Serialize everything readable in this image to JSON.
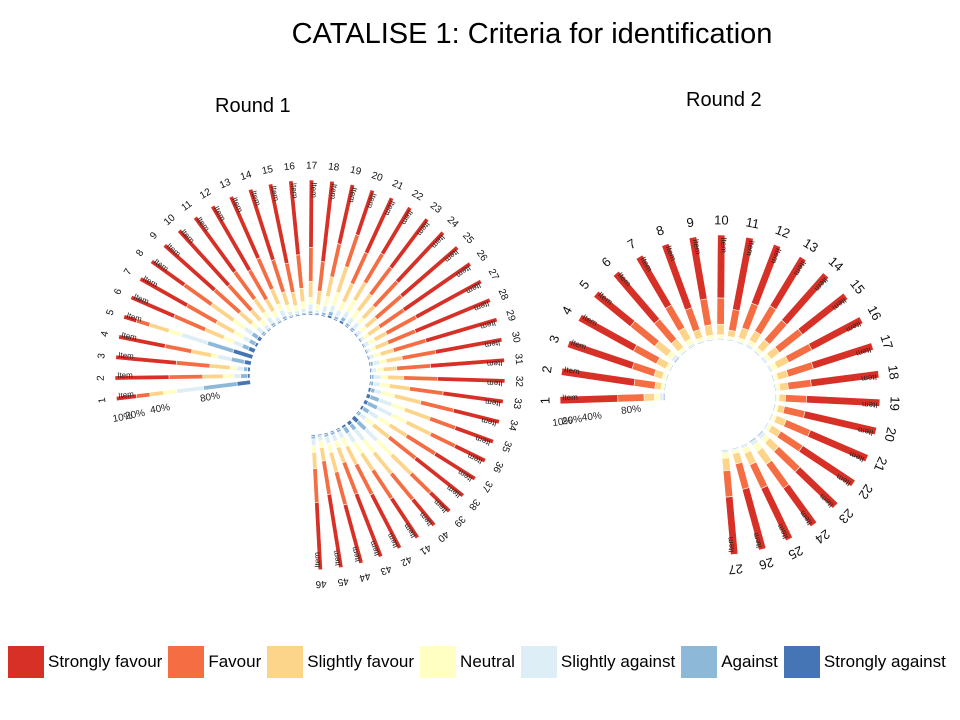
{
  "slide": {
    "title": "CATALISE 1: Criteria for identification"
  },
  "legend": [
    {
      "label": "Strongly favour",
      "color": "#d73027"
    },
    {
      "label": "Favour",
      "color": "#f46d43"
    },
    {
      "label": "Slightly favour",
      "color": "#fdd58a"
    },
    {
      "label": "Neutral",
      "color": "#ffffc4"
    },
    {
      "label": "Slightly against",
      "color": "#ddeef6"
    },
    {
      "label": "Against",
      "color": "#8db8d8"
    },
    {
      "label": "Strongly against",
      "color": "#4575b4"
    }
  ],
  "chart_data": [
    {
      "type": "circular-stacked-bar",
      "title": "Round 1",
      "item_label": "Item",
      "scale_labels": [
        "10%",
        "20%",
        "40%",
        "80%"
      ],
      "categories": [
        "1",
        "2",
        "3",
        "4",
        "5",
        "6",
        "7",
        "8",
        "9",
        "10",
        "11",
        "12",
        "13",
        "14",
        "15",
        "16",
        "17",
        "18",
        "19",
        "20",
        "21",
        "22",
        "23",
        "24",
        "25",
        "26",
        "27",
        "28",
        "29",
        "30",
        "31",
        "32",
        "33",
        "34",
        "35",
        "36",
        "37",
        "38",
        "39",
        "40",
        "41",
        "42",
        "43",
        "44",
        "45",
        "46"
      ],
      "series_order": [
        "Strongly favour",
        "Favour",
        "Slightly favour",
        "Neutral",
        "Slightly against",
        "Against",
        "Strongly against"
      ],
      "values": [
        [
          15,
          10,
          10,
          10,
          20,
          25,
          10
        ],
        [
          40,
          25,
          15,
          8,
          5,
          5,
          2
        ],
        [
          45,
          25,
          15,
          5,
          5,
          3,
          2
        ],
        [
          35,
          20,
          15,
          5,
          10,
          10,
          5
        ],
        [
          10,
          10,
          15,
          10,
          20,
          20,
          15
        ],
        [
          35,
          25,
          15,
          8,
          7,
          5,
          5
        ],
        [
          40,
          25,
          15,
          8,
          5,
          5,
          2
        ],
        [
          30,
          25,
          20,
          10,
          7,
          5,
          3
        ],
        [
          50,
          25,
          12,
          5,
          5,
          2,
          1
        ],
        [
          55,
          25,
          10,
          5,
          3,
          1,
          1
        ],
        [
          50,
          25,
          12,
          5,
          5,
          2,
          1
        ],
        [
          55,
          25,
          10,
          5,
          3,
          1,
          1
        ],
        [
          50,
          25,
          12,
          5,
          5,
          2,
          1
        ],
        [
          55,
          25,
          10,
          5,
          3,
          1,
          1
        ],
        [
          60,
          22,
          10,
          4,
          2,
          1,
          1
        ],
        [
          55,
          25,
          10,
          5,
          3,
          1,
          1
        ],
        [
          50,
          25,
          12,
          5,
          5,
          2,
          1
        ],
        [
          60,
          22,
          10,
          4,
          2,
          1,
          1
        ],
        [
          45,
          25,
          15,
          7,
          5,
          2,
          1
        ],
        [
          35,
          25,
          20,
          10,
          5,
          3,
          2
        ],
        [
          45,
          25,
          15,
          7,
          5,
          2,
          1
        ],
        [
          40,
          25,
          15,
          10,
          5,
          3,
          2
        ],
        [
          45,
          25,
          15,
          7,
          5,
          2,
          1
        ],
        [
          50,
          25,
          12,
          5,
          5,
          2,
          1
        ],
        [
          55,
          25,
          10,
          5,
          3,
          1,
          1
        ],
        [
          60,
          22,
          10,
          4,
          2,
          1,
          1
        ],
        [
          55,
          25,
          10,
          5,
          3,
          1,
          1
        ],
        [
          60,
          22,
          10,
          4,
          2,
          1,
          1
        ],
        [
          55,
          25,
          10,
          5,
          3,
          1,
          1
        ],
        [
          50,
          25,
          12,
          5,
          5,
          2,
          1
        ],
        [
          55,
          25,
          10,
          5,
          3,
          1,
          1
        ],
        [
          50,
          25,
          12,
          5,
          5,
          2,
          1
        ],
        [
          45,
          25,
          15,
          7,
          5,
          2,
          1
        ],
        [
          35,
          25,
          20,
          10,
          5,
          3,
          2
        ],
        [
          30,
          20,
          20,
          10,
          10,
          7,
          3
        ],
        [
          25,
          20,
          20,
          12,
          12,
          8,
          3
        ],
        [
          35,
          25,
          15,
          10,
          8,
          5,
          2
        ],
        [
          45,
          25,
          15,
          7,
          5,
          2,
          1
        ],
        [
          20,
          20,
          20,
          15,
          12,
          8,
          5
        ],
        [
          25,
          25,
          20,
          12,
          10,
          5,
          3
        ],
        [
          35,
          25,
          15,
          10,
          8,
          5,
          2
        ],
        [
          45,
          25,
          15,
          7,
          5,
          2,
          1
        ],
        [
          50,
          25,
          12,
          5,
          5,
          2,
          1
        ],
        [
          45,
          25,
          15,
          7,
          5,
          2,
          1
        ],
        [
          55,
          25,
          10,
          5,
          3,
          1,
          1
        ],
        [
          50,
          25,
          12,
          5,
          5,
          2,
          1
        ]
      ]
    },
    {
      "type": "circular-stacked-bar",
      "title": "Round 2",
      "item_label": "Item",
      "scale_labels": [
        "10%",
        "20%",
        "40%",
        "80%"
      ],
      "categories": [
        "1",
        "2",
        "3",
        "4",
        "5",
        "6",
        "7",
        "8",
        "9",
        "10",
        "11",
        "12",
        "13",
        "14",
        "15",
        "16",
        "17",
        "18",
        "19",
        "20",
        "21",
        "22",
        "23",
        "24",
        "25",
        "26",
        "27"
      ],
      "series_order": [
        "Strongly favour",
        "Favour",
        "Slightly favour",
        "Neutral",
        "Slightly against",
        "Against",
        "Strongly against"
      ],
      "values": [
        [
          55,
          25,
          10,
          5,
          3,
          1,
          1
        ],
        [
          70,
          20,
          6,
          2,
          1,
          1,
          0
        ],
        [
          65,
          22,
          8,
          3,
          1,
          1,
          0
        ],
        [
          60,
          25,
          10,
          3,
          1,
          1,
          0
        ],
        [
          45,
          30,
          15,
          5,
          3,
          1,
          1
        ],
        [
          60,
          25,
          10,
          3,
          1,
          1,
          0
        ],
        [
          55,
          25,
          12,
          5,
          2,
          1,
          0
        ],
        [
          65,
          22,
          8,
          3,
          1,
          1,
          0
        ],
        [
          60,
          25,
          10,
          3,
          1,
          1,
          0
        ],
        [
          60,
          25,
          10,
          3,
          1,
          1,
          0
        ],
        [
          70,
          20,
          6,
          2,
          1,
          1,
          0
        ],
        [
          60,
          25,
          10,
          3,
          1,
          1,
          0
        ],
        [
          55,
          28,
          10,
          4,
          2,
          1,
          0
        ],
        [
          60,
          25,
          10,
          3,
          1,
          1,
          0
        ],
        [
          55,
          28,
          10,
          4,
          2,
          1,
          0
        ],
        [
          55,
          25,
          12,
          5,
          2,
          1,
          0
        ],
        [
          60,
          25,
          10,
          3,
          1,
          1,
          0
        ],
        [
          65,
          22,
          8,
          3,
          1,
          1,
          0
        ],
        [
          70,
          20,
          6,
          2,
          1,
          1,
          0
        ],
        [
          70,
          20,
          6,
          2,
          1,
          1,
          0
        ],
        [
          60,
          25,
          10,
          3,
          1,
          1,
          0
        ],
        [
          60,
          25,
          10,
          3,
          1,
          1,
          0
        ],
        [
          50,
          28,
          12,
          5,
          3,
          1,
          1
        ],
        [
          45,
          28,
          15,
          7,
          3,
          1,
          1
        ],
        [
          55,
          25,
          12,
          5,
          2,
          1,
          0
        ],
        [
          60,
          25,
          10,
          3,
          1,
          1,
          0
        ],
        [
          55,
          25,
          12,
          5,
          2,
          1,
          0
        ]
      ]
    }
  ]
}
